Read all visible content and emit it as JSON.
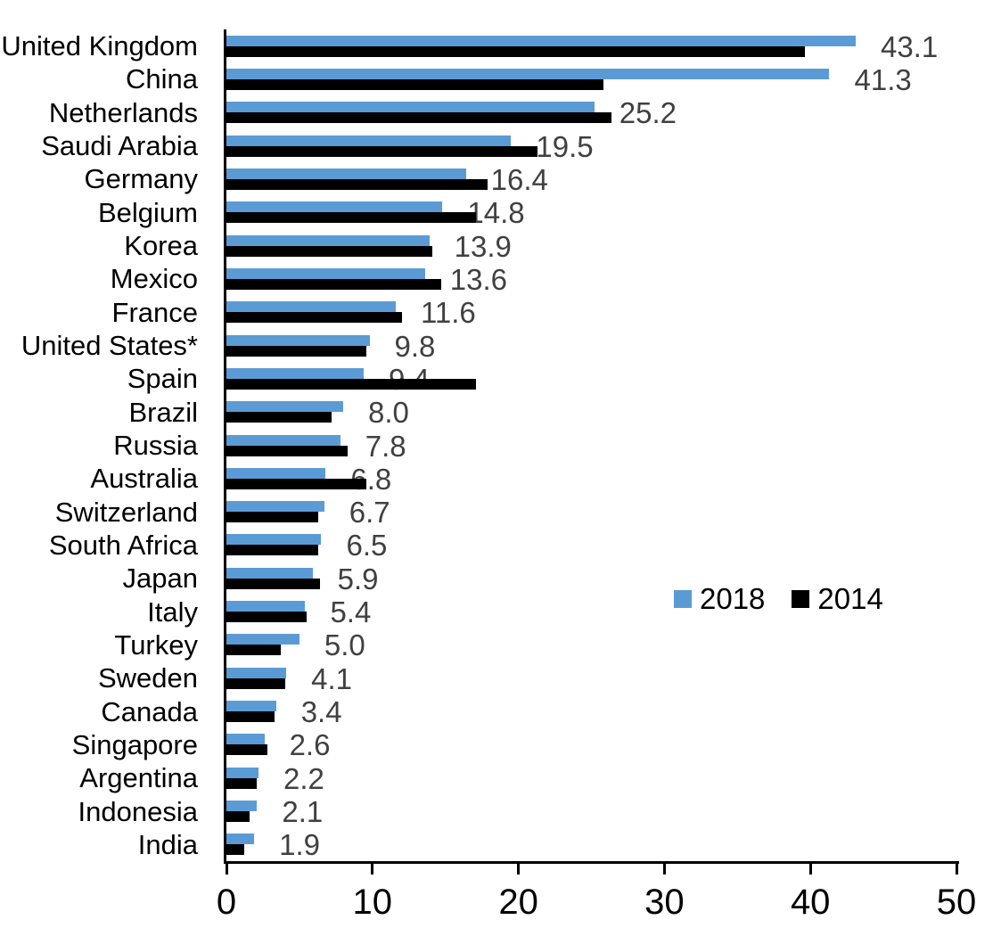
{
  "chart_data": {
    "type": "bar",
    "orientation": "horizontal",
    "title": "",
    "xlabel": "",
    "ylabel": "",
    "xlim": [
      0,
      50
    ],
    "x_ticks": [
      "0",
      "10",
      "20",
      "30",
      "40",
      "50"
    ],
    "grid": false,
    "legend_position": "middle-right",
    "categories": [
      "United Kingdom",
      "China",
      "Netherlands",
      "Saudi Arabia",
      "Germany",
      "Belgium",
      "Korea",
      "Mexico",
      "France",
      "United States*",
      "Spain",
      "Brazil",
      "Russia",
      "Australia",
      "Switzerland",
      "South Africa",
      "Japan",
      "Italy",
      "Turkey",
      "Sweden",
      "Canada",
      "Singapore",
      "Argentina",
      "Indonesia",
      "India"
    ],
    "series": [
      {
        "name": "2018",
        "color": "#5B9BD5",
        "values": [
          43.1,
          41.3,
          25.2,
          19.5,
          16.4,
          14.8,
          13.9,
          13.6,
          11.6,
          9.8,
          9.4,
          8.0,
          7.8,
          6.8,
          6.7,
          6.5,
          5.9,
          5.4,
          5.0,
          4.1,
          3.4,
          2.6,
          2.2,
          2.1,
          1.9
        ],
        "data_labels": [
          "43.1",
          "41.3",
          "25.2",
          "19.5",
          "16.4",
          "14.8",
          "13.9",
          "13.6",
          "11.6",
          "9.8",
          "9.4",
          "8.0",
          "7.8",
          "6.8",
          "6.7",
          "6.5",
          "5.9",
          "5.4",
          "5.0",
          "4.1",
          "3.4",
          "2.6",
          "2.2",
          "2.1",
          "1.9"
        ],
        "data_label_color": "#404040"
      },
      {
        "name": "2014",
        "color": "#000000",
        "values": [
          39.6,
          25.8,
          26.4,
          21.3,
          17.9,
          17.1,
          14.1,
          14.7,
          12.0,
          9.6,
          17.1,
          7.2,
          8.3,
          9.6,
          6.3,
          6.3,
          6.4,
          5.5,
          3.7,
          4.0,
          3.3,
          2.8,
          2.1,
          1.6,
          1.2
        ]
      }
    ]
  },
  "legend": {
    "items": [
      {
        "label": "2018",
        "color": "#5B9BD5"
      },
      {
        "label": "2014",
        "color": "#000000"
      }
    ]
  }
}
